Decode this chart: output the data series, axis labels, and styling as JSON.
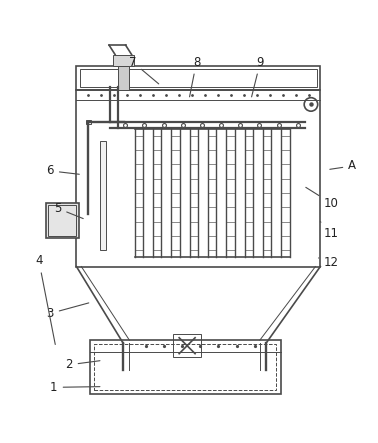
{
  "bg_color": "#ffffff",
  "line_color": "#4a4a4a",
  "line_width": 1.2,
  "thin_line": 0.7,
  "fig_width": 3.78,
  "fig_height": 4.43,
  "labels_info": {
    "1": [
      0.14,
      0.058,
      0.27,
      0.06
    ],
    "2": [
      0.18,
      0.118,
      0.27,
      0.13
    ],
    "3": [
      0.13,
      0.255,
      0.24,
      0.285
    ],
    "4": [
      0.1,
      0.395,
      0.145,
      0.165
    ],
    "5": [
      0.15,
      0.535,
      0.225,
      0.505
    ],
    "6": [
      0.13,
      0.635,
      0.215,
      0.625
    ],
    "7": [
      0.35,
      0.925,
      0.425,
      0.862
    ],
    "8": [
      0.52,
      0.925,
      0.5,
      0.825
    ],
    "9": [
      0.69,
      0.925,
      0.665,
      0.825
    ],
    "10": [
      0.88,
      0.548,
      0.805,
      0.595
    ],
    "11": [
      0.88,
      0.468,
      0.845,
      0.505
    ],
    "12": [
      0.88,
      0.392,
      0.838,
      0.405
    ],
    "A": [
      0.935,
      0.648,
      0.868,
      0.638
    ]
  }
}
